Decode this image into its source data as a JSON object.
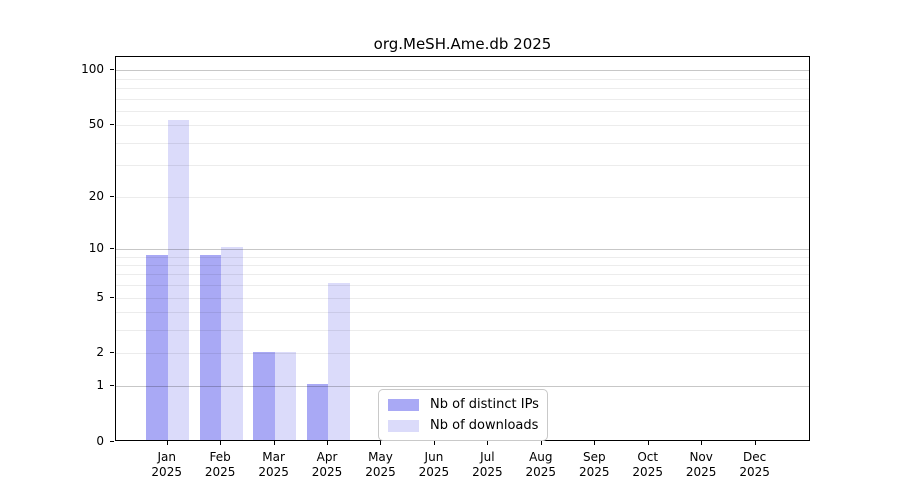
{
  "figure": {
    "title": "org.MeSH.Ame.db 2025"
  },
  "chart_data": {
    "type": "bar",
    "title": "org.MeSH.Ame.db 2025",
    "categories": [
      "Jan",
      "Feb",
      "Mar",
      "Apr",
      "May",
      "Jun",
      "Jul",
      "Aug",
      "Sep",
      "Oct",
      "Nov",
      "Dec"
    ],
    "year_label": "2025",
    "series": [
      {
        "name": "Nb of distinct IPs",
        "color": "#a9a9f5",
        "values": [
          9,
          9,
          2,
          1,
          0,
          0,
          0,
          0,
          0,
          0,
          0,
          0
        ]
      },
      {
        "name": "Nb of downloads",
        "color": "#dbdbfa",
        "values": [
          52,
          10,
          2,
          6,
          0,
          0,
          0,
          0,
          0,
          0,
          0,
          0
        ]
      }
    ],
    "xlabel": "",
    "ylabel": "",
    "yscale": "log1p",
    "ylim": [
      0,
      118
    ],
    "yticks": [
      0,
      1,
      2,
      5,
      10,
      20,
      50,
      100
    ],
    "yticklabels": [
      "0",
      "1",
      "2",
      "5",
      "10",
      "20",
      "50",
      "100"
    ],
    "major_gridlines": [
      1,
      10,
      100
    ],
    "minor_gridlines": [
      2,
      3,
      4,
      5,
      6,
      7,
      8,
      9,
      20,
      30,
      40,
      50,
      60,
      70,
      80,
      90
    ],
    "grid": true,
    "legend_position": "inside lower-center",
    "colors": {
      "axis": "#000000",
      "major_grid": "#c6c6c6",
      "minor_grid": "#ececec",
      "legend_border": "#c9c9c9",
      "background": "#ffffff"
    }
  }
}
